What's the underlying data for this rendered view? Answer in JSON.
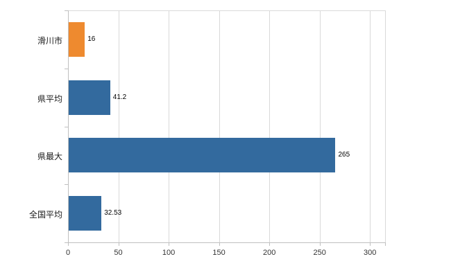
{
  "chart_data": {
    "type": "bar",
    "orientation": "horizontal",
    "title": "",
    "xlabel": "",
    "ylabel": "",
    "categories": [
      "滑川市",
      "県平均",
      "県最大",
      "全国平均"
    ],
    "values": [
      16,
      41.2,
      265,
      32.53
    ],
    "value_labels": [
      "16",
      "41.2",
      "265",
      "32.53"
    ],
    "bar_colors": [
      "#ee8a2f",
      "#336a9e",
      "#336a9e",
      "#336a9e"
    ],
    "x_ticks": [
      0,
      50,
      100,
      150,
      200,
      250,
      300
    ],
    "x_tick_labels": [
      "0",
      "50",
      "100",
      "150",
      "200",
      "250",
      "300"
    ],
    "xlim": [
      0,
      315
    ],
    "grid": true,
    "legend": "none",
    "colors": {
      "grid": "#d9d9d9",
      "axis": "#bfbfbf",
      "bar_blue": "#336a9e",
      "bar_orange": "#ee8a2f",
      "text": "#1a1a1a",
      "background": "#ffffff"
    }
  }
}
